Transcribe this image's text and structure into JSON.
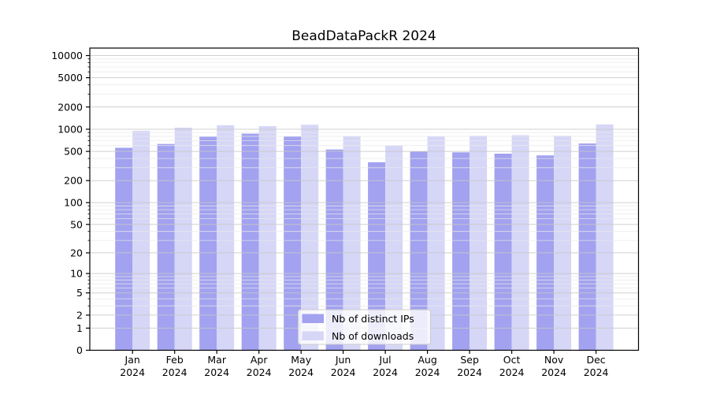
{
  "title": "BeadDataPackR 2024",
  "chart_data": {
    "type": "bar",
    "title": "BeadDataPackR 2024",
    "categories": [
      "Jan 2024",
      "Feb 2024",
      "Mar 2024",
      "Apr 2024",
      "May 2024",
      "Jun 2024",
      "Jul 2024",
      "Aug 2024",
      "Sep 2024",
      "Oct 2024",
      "Nov 2024",
      "Dec 2024"
    ],
    "x_tick_month": [
      "Jan",
      "Feb",
      "Mar",
      "Apr",
      "May",
      "Jun",
      "Jul",
      "Aug",
      "Sep",
      "Oct",
      "Nov",
      "Dec"
    ],
    "x_tick_year": "2024",
    "series": [
      {
        "name": "Nb of distinct IPs",
        "color": "#a2a2f0",
        "values": [
          560,
          630,
          790,
          870,
          795,
          530,
          355,
          500,
          485,
          465,
          440,
          640
        ]
      },
      {
        "name": "Nb of downloads",
        "color": "#d6d6f7",
        "values": [
          950,
          1050,
          1130,
          1100,
          1150,
          805,
          600,
          795,
          815,
          830,
          815,
          1160
        ]
      }
    ],
    "yscale": "log1p",
    "y_ticks": [
      0,
      1,
      2,
      5,
      10,
      20,
      50,
      100,
      200,
      500,
      1000,
      2000,
      5000,
      10000
    ],
    "y_tick_labels": [
      "0",
      "1",
      "2",
      "5",
      "10",
      "20",
      "50",
      "100",
      "200",
      "500",
      "1000",
      "2000",
      "5000",
      "10000"
    ],
    "ylim": [
      0,
      12600
    ],
    "xlabel": "",
    "ylabel": "",
    "grid": true,
    "legend_position": "lower center",
    "colors": {
      "major_grid": "#c8c8c8",
      "minor_grid": "#e9e9e9",
      "axis": "#000000",
      "legend_border": "#cccccc",
      "legend_bg": "#ffffff"
    }
  }
}
